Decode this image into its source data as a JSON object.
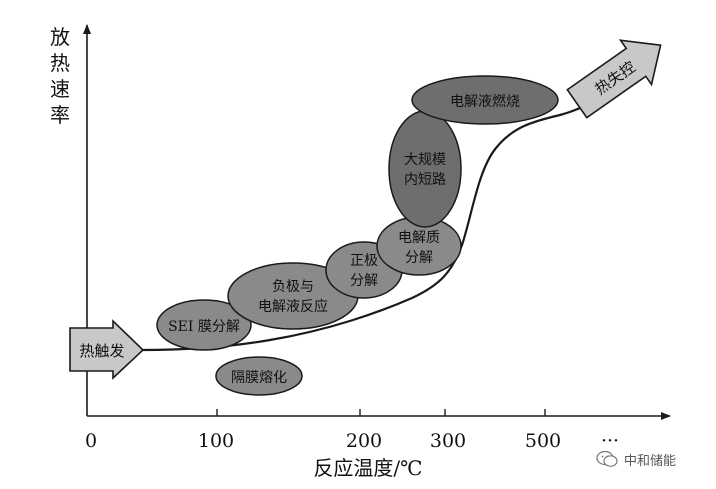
{
  "y_axis_title": "放热速率",
  "x_axis_title": "反应温度/℃",
  "x_ticks": [
    "0",
    "100",
    "200",
    "300",
    "500",
    "···"
  ],
  "start_arrow": "热触发",
  "end_arrow": "热失控",
  "stages": {
    "sei": "SEI 膜分解",
    "separator": "隔膜熔化",
    "anode": [
      "负极与",
      "电解液反应"
    ],
    "cathode": [
      "正极",
      "分解"
    ],
    "electrolyte": [
      "电解质",
      "分解"
    ],
    "short_circuit": [
      "大规模",
      "内短路"
    ],
    "combustion": "电解液燃烧"
  },
  "watermark": "中和储能",
  "colors": {
    "ellipse_fill": "#8a8a8a",
    "ellipse_dark": "#6e6e6e",
    "arrow_fill": "#c8c8c8",
    "stroke": "#1a1a1a"
  }
}
